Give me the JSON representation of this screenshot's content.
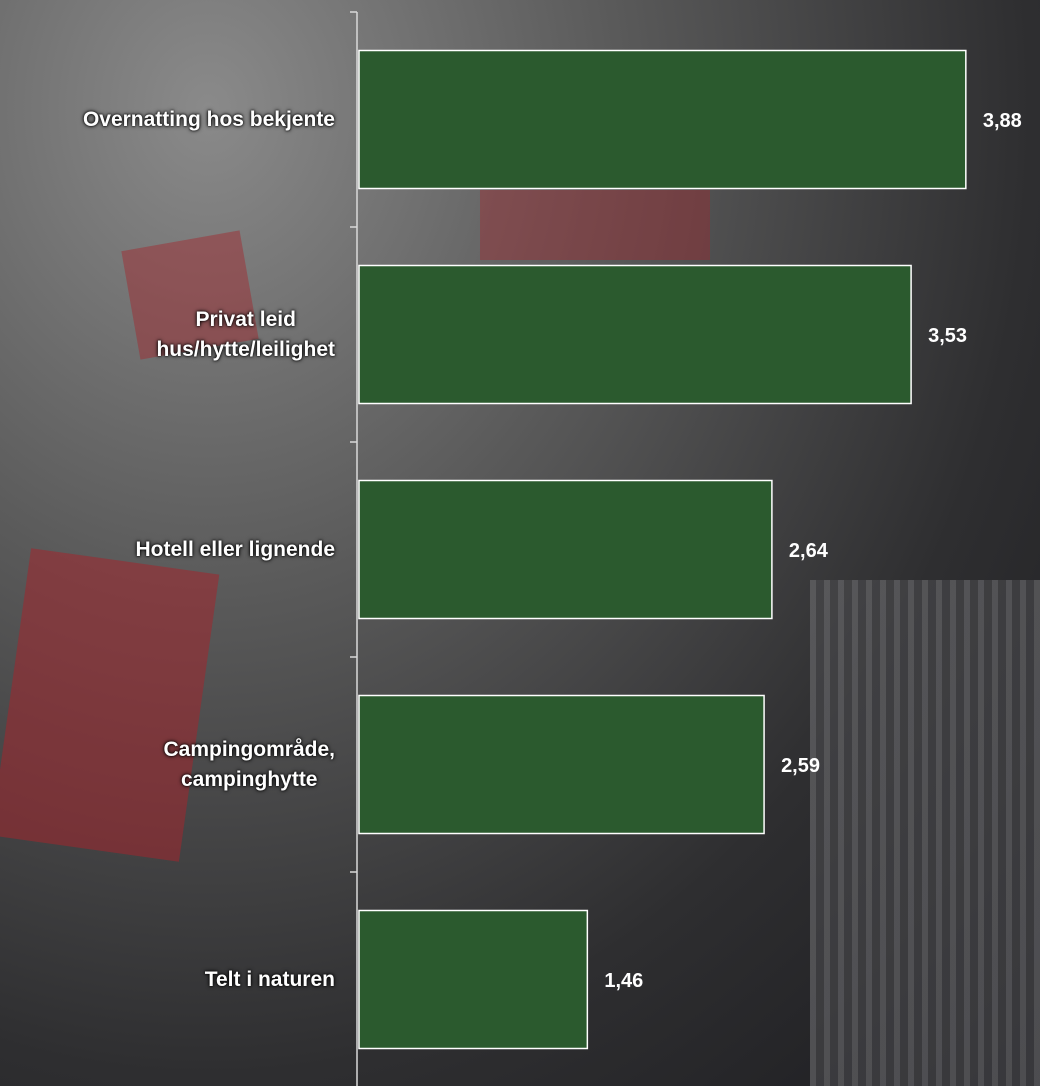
{
  "chart_data": {
    "type": "bar",
    "orientation": "horizontal",
    "categories": [
      "Overnatting hos bekjente",
      "Privat leid\nhus/hytte/leilighet",
      "Hotell eller lignende",
      "Campingområde,\ncampinghytte",
      "Telt i naturen"
    ],
    "values": [
      3.88,
      3.53,
      2.64,
      2.59,
      1.46
    ],
    "value_labels": [
      "3,88",
      "3,53",
      "2,64",
      "2,59",
      "1,46"
    ],
    "color": "#2b5a2e"
  }
}
